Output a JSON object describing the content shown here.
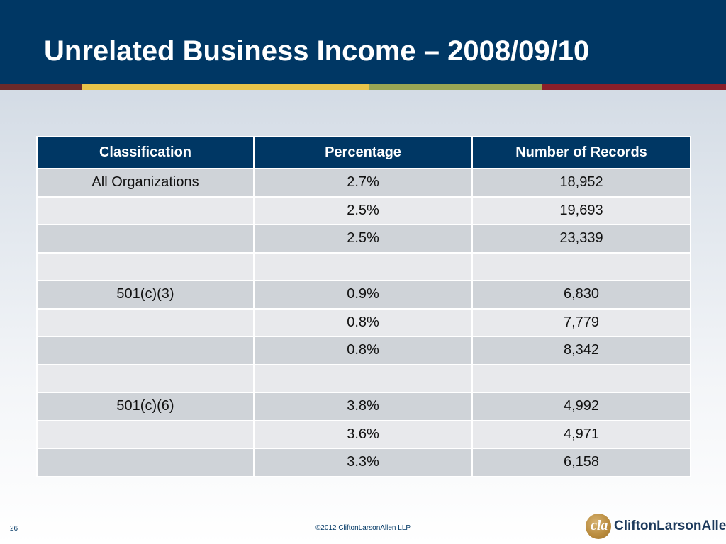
{
  "slide": {
    "title": "Unrelated Business Income – 2008/09/10",
    "page_number": "26",
    "copyright": "©2012 CliftonLarsonAllen LLP"
  },
  "logo": {
    "text": "CliftonLarsonAllen",
    "mark_icon": "cla-monogram-icon",
    "mark_color": "#b88a3c"
  },
  "colors": {
    "header_navy": "#003764",
    "row_dark": "#cfd3d8",
    "row_light": "#e8e9ec"
  },
  "table": {
    "headers": [
      "Classification",
      "Percentage",
      "Number of Records"
    ],
    "rows": [
      [
        "All Organizations",
        "2.7%",
        "18,952"
      ],
      [
        "",
        "2.5%",
        "19,693"
      ],
      [
        "",
        "2.5%",
        "23,339"
      ],
      [
        "",
        "",
        ""
      ],
      [
        "501(c)(3)",
        "0.9%",
        "6,830"
      ],
      [
        "",
        "0.8%",
        "7,779"
      ],
      [
        "",
        "0.8%",
        "8,342"
      ],
      [
        "",
        "",
        ""
      ],
      [
        "501(c)(6)",
        "3.8%",
        "4,992"
      ],
      [
        "",
        "3.6%",
        "4,971"
      ],
      [
        "",
        "3.3%",
        "6,158"
      ]
    ]
  }
}
